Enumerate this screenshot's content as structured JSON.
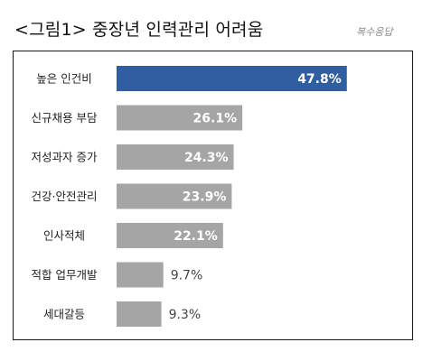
{
  "title": "<그림1> 중장년 인력관리 어려움",
  "watermark": "복수응답",
  "chart_data": {
    "type": "bar",
    "orientation": "horizontal",
    "title": "<그림1> 중장년 인력관리 어려움",
    "categories": [
      "높은 인건비",
      "신규채용 부담",
      "저성과자 증가",
      "건강·안전관리",
      "인사적체",
      "적합 업무개발",
      "세대갈등"
    ],
    "values": [
      47.8,
      26.1,
      24.3,
      23.9,
      22.1,
      9.7,
      9.3
    ],
    "value_labels": [
      "47.8%",
      "26.1%",
      "24.3%",
      "23.9%",
      "22.1%",
      "9.7%",
      "9.3%"
    ],
    "unit": "%",
    "xlim": [
      0,
      60
    ],
    "grid": false,
    "legend": "none",
    "colors": {
      "highlight": "#2f5f9e",
      "default": "#a5a5a5"
    }
  }
}
